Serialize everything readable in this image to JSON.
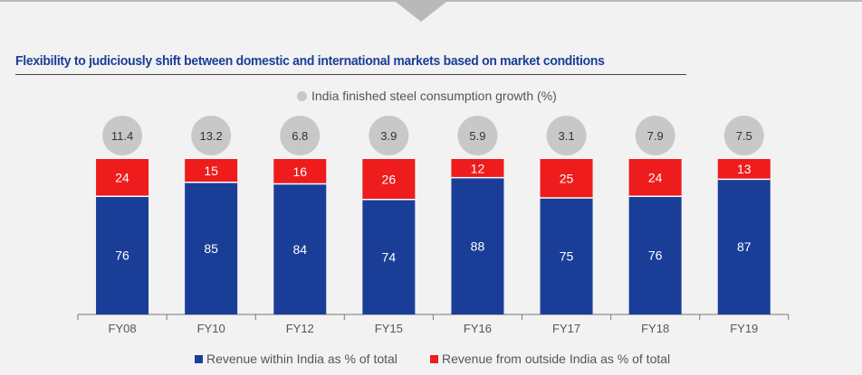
{
  "chart_data": {
    "type": "bar",
    "stacked": true,
    "title": "Flexibility to judiciously shift between domestic and international markets based on market conditions",
    "categories": [
      "FY08",
      "FY10",
      "FY12",
      "FY15",
      "FY16",
      "FY17",
      "FY18",
      "FY19"
    ],
    "series": [
      {
        "name": "Revenue within India as % of total",
        "color": "#1a3e98",
        "values": [
          76,
          85,
          84,
          74,
          88,
          75,
          76,
          87
        ]
      },
      {
        "name": "Revenue from outside India as % of total",
        "color": "#ee1c1c",
        "values": [
          24,
          15,
          16,
          26,
          12,
          25,
          24,
          13
        ]
      }
    ],
    "growth": {
      "name": "India finished steel consumption growth (%)",
      "color": "#c8c8c8",
      "values": [
        "11.4",
        "13.2",
        "6.8",
        "3.9",
        "5.9",
        "3.1",
        "7.9",
        "7.5"
      ]
    },
    "ylim": [
      0,
      100
    ],
    "legend_position": "bottom"
  }
}
